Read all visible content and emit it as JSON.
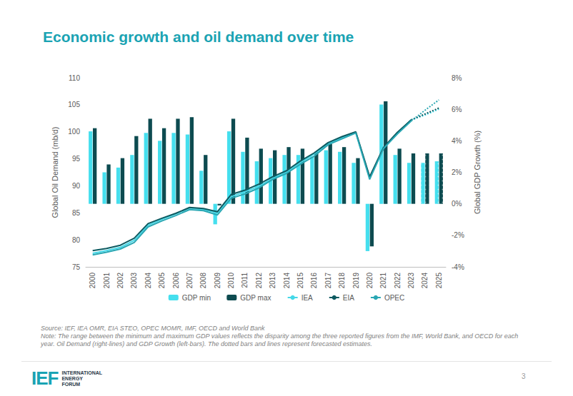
{
  "chart_data": {
    "type": "bar",
    "title": "Economic growth and oil demand over time",
    "y_label": "Global Oil Demand (mb/d)",
    "y2_label": "Global GDP Growth (%)",
    "categories": [
      "2000",
      "2001",
      "2002",
      "2003",
      "2004",
      "2005",
      "2006",
      "2007",
      "2008",
      "2009",
      "2010",
      "2011",
      "2012",
      "2013",
      "2014",
      "2015",
      "2016",
      "2017",
      "2018",
      "2019",
      "2020",
      "2021",
      "2022",
      "2023",
      "2024",
      "2025"
    ],
    "forecast": [
      "2024",
      "2025"
    ],
    "series": [
      {
        "name": "GDP min",
        "type": "bar",
        "axis": "y2",
        "color": "#45dfee",
        "values": [
          4.6,
          2.0,
          2.3,
          3.1,
          4.5,
          4.0,
          4.5,
          4.4,
          2.1,
          -1.3,
          4.6,
          3.3,
          2.7,
          2.9,
          3.1,
          3.1,
          3.0,
          3.4,
          3.3,
          2.6,
          -3.0,
          6.3,
          3.1,
          2.6,
          2.6,
          2.7
        ]
      },
      {
        "name": "GDP max",
        "type": "bar",
        "axis": "y2",
        "color": "#0d4b50",
        "values": [
          4.8,
          2.5,
          2.9,
          4.3,
          5.4,
          4.8,
          5.4,
          5.5,
          3.1,
          -0.1,
          5.4,
          4.2,
          3.5,
          3.4,
          3.6,
          3.5,
          3.3,
          3.8,
          3.6,
          2.9,
          -2.7,
          6.5,
          3.5,
          3.2,
          3.2,
          3.2
        ]
      },
      {
        "name": "IEA",
        "type": "line",
        "color": "#45d8e8",
        "values": [
          77.5,
          78.0,
          78.6,
          79.9,
          82.7,
          83.8,
          84.8,
          85.9,
          85.6,
          85.0,
          88.0,
          88.9,
          89.9,
          91.4,
          92.5,
          94.3,
          95.9,
          97.8,
          98.9,
          99.9,
          91.5,
          96.9,
          99.7,
          102.2,
          103.1,
          104.2
        ]
      },
      {
        "name": "EIA",
        "type": "line",
        "color": "#0d5a60",
        "values": [
          78.0,
          78.4,
          79.0,
          80.3,
          83.0,
          84.0,
          84.9,
          86.0,
          85.8,
          85.2,
          88.4,
          89.2,
          90.3,
          91.7,
          92.8,
          94.6,
          96.1,
          98.0,
          99.1,
          100.0,
          91.7,
          97.1,
          99.9,
          102.2,
          103.3,
          104.4
        ]
      },
      {
        "name": "OPEC",
        "type": "line",
        "color": "#2aa7b3",
        "values": [
          77.2,
          77.7,
          78.3,
          79.5,
          82.4,
          83.5,
          84.5,
          85.6,
          85.4,
          84.6,
          87.7,
          88.5,
          89.6,
          91.2,
          92.3,
          94.0,
          95.5,
          97.6,
          98.7,
          99.8,
          91.2,
          96.9,
          99.6,
          102.0,
          104.0,
          105.9
        ]
      }
    ],
    "ylim": [
      75,
      110
    ],
    "yticks": [
      75,
      80,
      85,
      90,
      95,
      100,
      105,
      110
    ],
    "y2lim": [
      -4,
      8
    ],
    "y2ticks": [
      {
        "value": -4,
        "label": "-4%"
      },
      {
        "value": -2,
        "label": "-2%"
      },
      {
        "value": 0,
        "label": "0%"
      },
      {
        "value": 2,
        "label": "2%"
      },
      {
        "value": 4,
        "label": "4%"
      },
      {
        "value": 6,
        "label": "6%"
      },
      {
        "value": 8,
        "label": "8%"
      }
    ],
    "grid": false,
    "legend": "bottom"
  },
  "notes": {
    "source": "Source: IEF, IEA OMR, EIA STEO, OPEC MOMR, IMF, OECD and World Bank",
    "note": "Note: The range between the minimum and maximum GDP values reflects the disparity among the three reported figures from the IMF, World Bank, and OECD for each year. Oil Demand (right-lines) and GDP Growth (left-bars). The dotted bars and lines represent forecasted estimates."
  },
  "footer": {
    "logo": "IEF",
    "organisation": [
      "INTERNATIONAL",
      "ENERGY",
      "FORUM"
    ],
    "page": "3"
  }
}
